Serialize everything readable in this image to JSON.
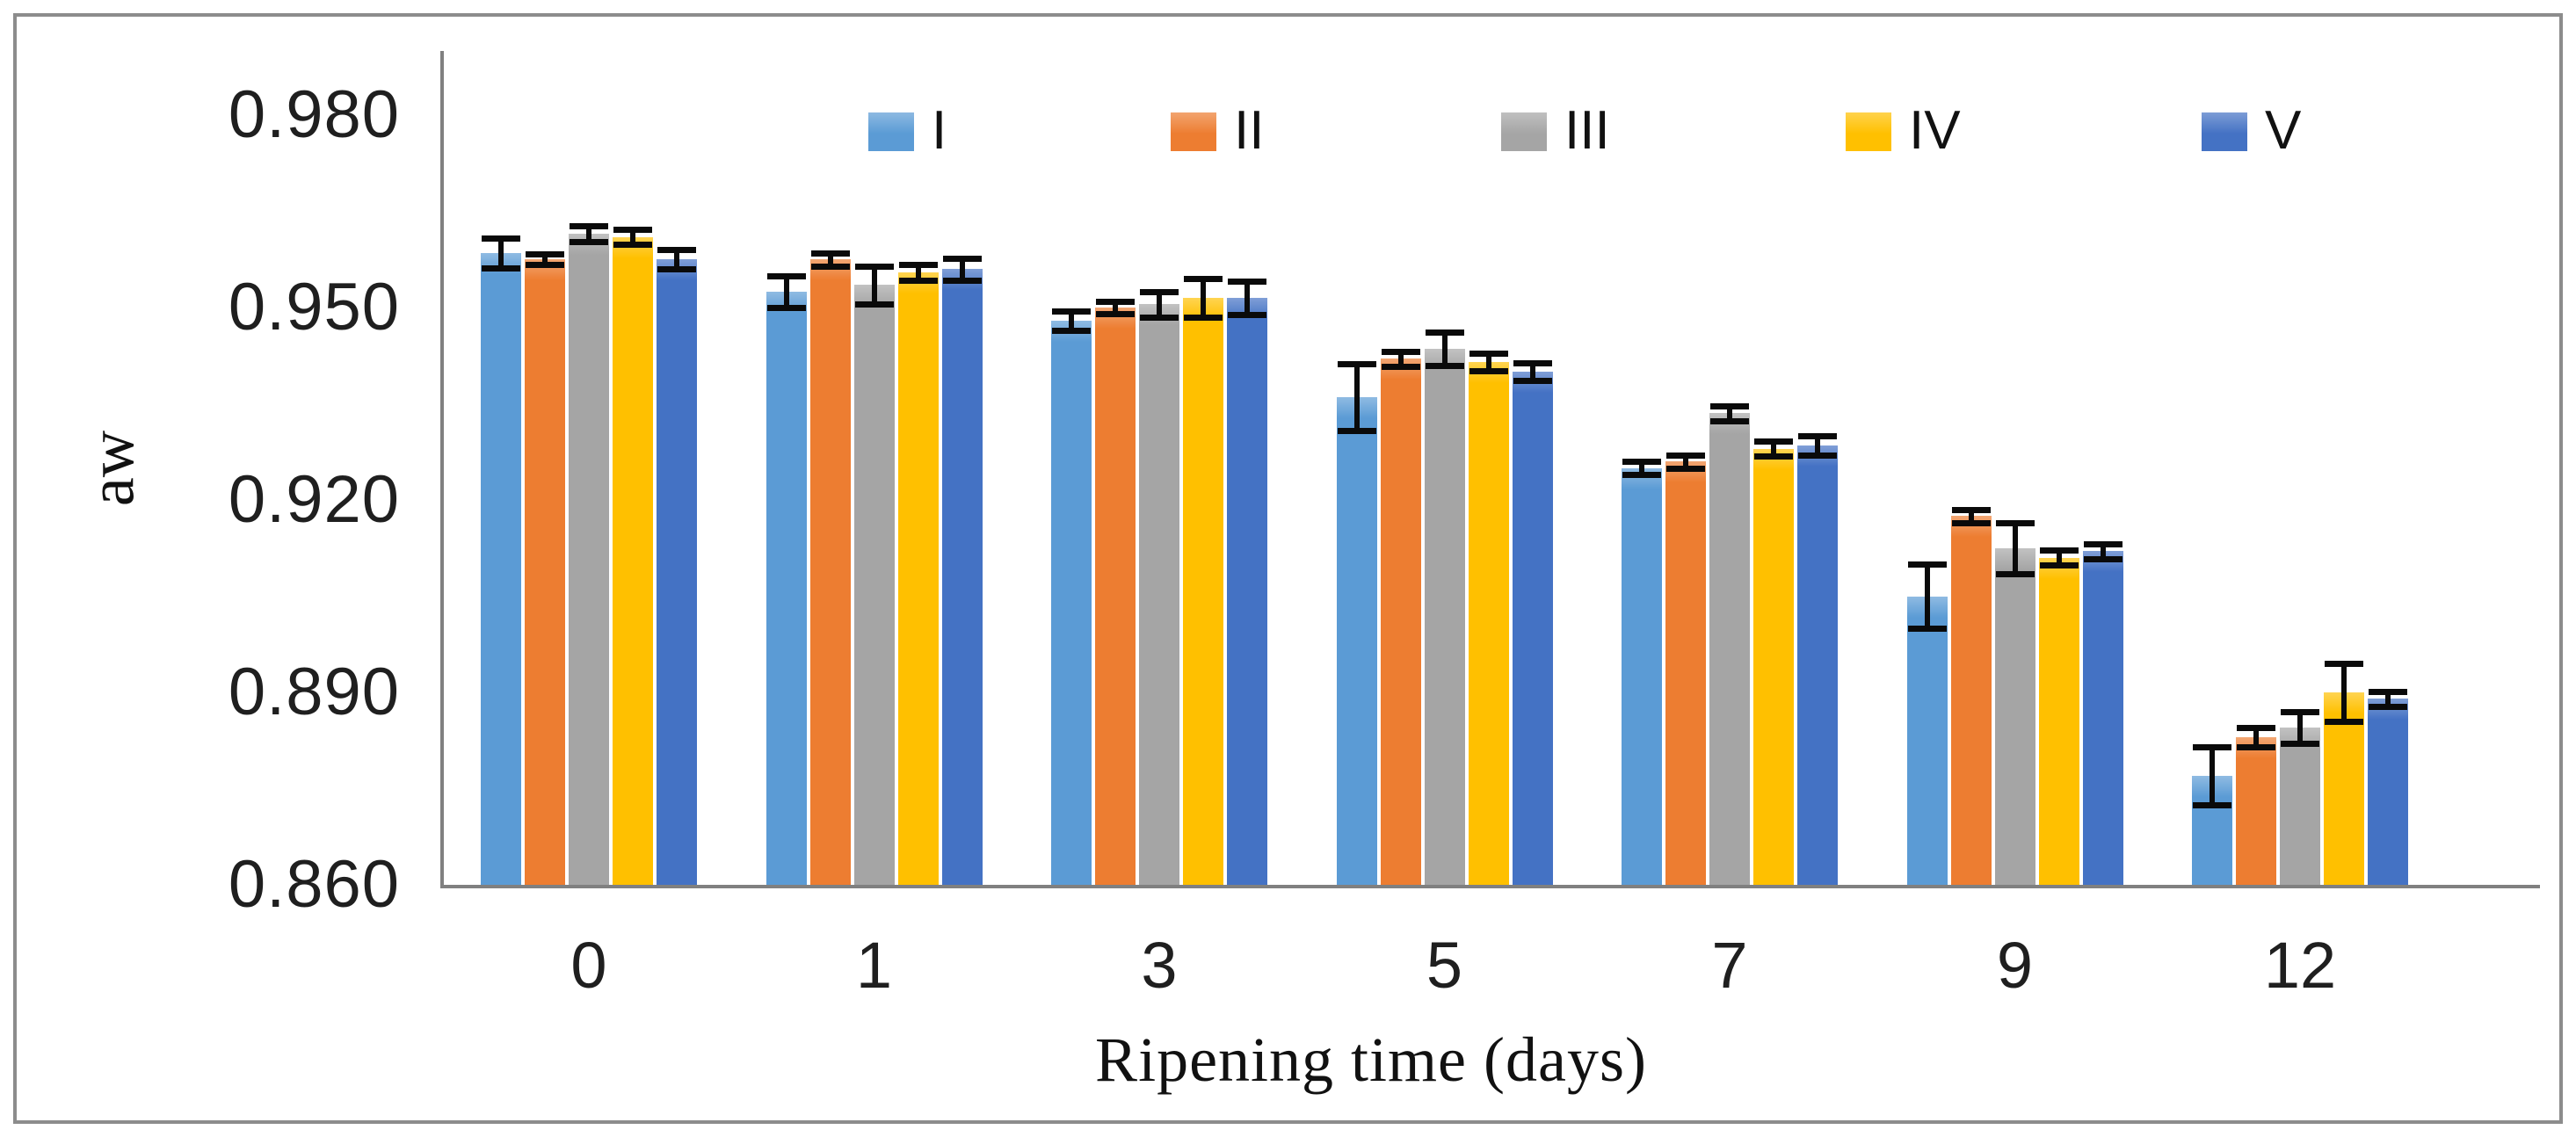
{
  "figure": {
    "type_label": "grouped-bar-chart-with-error-bars",
    "background": "#ffffff",
    "border_color": "#8c8c8c",
    "axis_line_color": "#808080"
  },
  "chart_data": {
    "type": "bar",
    "title": "",
    "xlabel": "Ripening time (days)",
    "ylabel": "aw",
    "categories": [
      "0",
      "1",
      "3",
      "5",
      "7",
      "9",
      "12"
    ],
    "yticks_labels": [
      "0.980",
      "0.950",
      "0.920",
      "0.890",
      "0.860"
    ],
    "yticks_values": [
      0.98,
      0.95,
      0.92,
      0.89,
      0.86
    ],
    "ylim": [
      0.86,
      0.99
    ],
    "grid": false,
    "legend_position": "top",
    "error_bar_color": "#0a0a0a",
    "series": [
      {
        "name": "I",
        "color": "#5B9BD5",
        "values": [
          0.9585,
          0.9525,
          0.948,
          0.936,
          0.925,
          0.905,
          0.877
        ],
        "errors": [
          0.0023,
          0.0025,
          0.0015,
          0.0052,
          0.001,
          0.005,
          0.0045
        ]
      },
      {
        "name": "II",
        "color": "#ED7D31",
        "values": [
          0.9575,
          0.9575,
          0.95,
          0.942,
          0.926,
          0.9175,
          0.883
        ],
        "errors": [
          0.0008,
          0.001,
          0.001,
          0.0012,
          0.001,
          0.001,
          0.0015
        ]
      },
      {
        "name": "III",
        "color": "#A5A5A5",
        "values": [
          0.9615,
          0.9535,
          0.9505,
          0.9435,
          0.9335,
          0.9125,
          0.8845
        ],
        "errors": [
          0.0012,
          0.003,
          0.002,
          0.0026,
          0.0012,
          0.004,
          0.0025
        ]
      },
      {
        "name": "IV",
        "color": "#FFC000",
        "values": [
          0.961,
          0.9555,
          0.9515,
          0.9415,
          0.928,
          0.911,
          0.89
        ],
        "errors": [
          0.0012,
          0.0012,
          0.003,
          0.0014,
          0.0012,
          0.0012,
          0.0045
        ]
      },
      {
        "name": "V",
        "color": "#4472C4",
        "values": [
          0.9575,
          0.956,
          0.9515,
          0.94,
          0.9285,
          0.912,
          0.889
        ],
        "errors": [
          0.0015,
          0.0017,
          0.0026,
          0.0014,
          0.0015,
          0.0012,
          0.0012
        ]
      }
    ]
  }
}
